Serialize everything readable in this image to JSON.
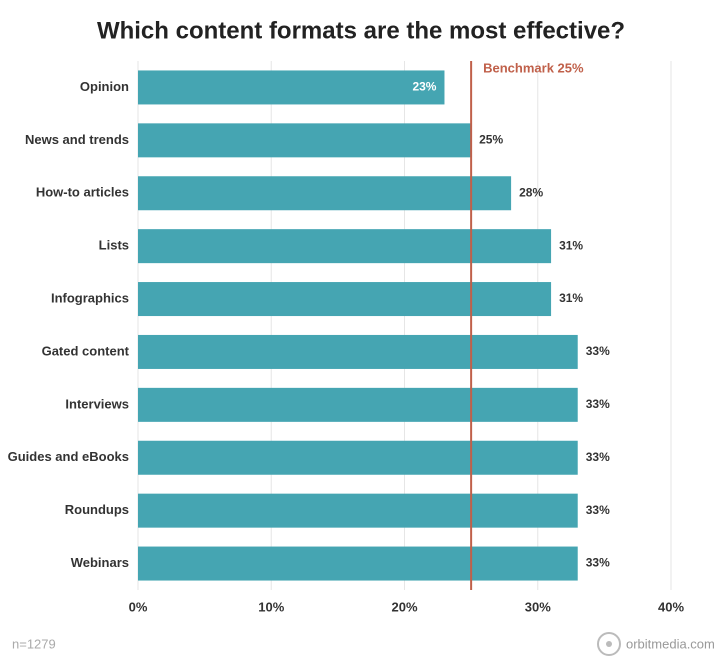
{
  "chart_data": {
    "type": "hbar",
    "title": "Which content formats are the most effective?",
    "categories": [
      "Opinion",
      "News and trends",
      "How-to articles",
      "Lists",
      "Infographics",
      "Gated content",
      "Interviews",
      "Guides and eBooks",
      "Roundups",
      "Webinars"
    ],
    "values": [
      23,
      25,
      28,
      31,
      31,
      33,
      33,
      33,
      33,
      33
    ],
    "value_labels": [
      "23%",
      "25%",
      "28%",
      "31%",
      "31%",
      "33%",
      "33%",
      "33%",
      "33%",
      "33%"
    ],
    "color": "#45a5b2",
    "xlim": [
      0,
      40
    ],
    "xticks": [
      {
        "value": 0,
        "label": "0%"
      },
      {
        "value": 10,
        "label": "10%"
      },
      {
        "value": 20,
        "label": "20%"
      },
      {
        "value": 30,
        "label": "30%"
      },
      {
        "value": 40,
        "label": "40%"
      }
    ],
    "grid": true,
    "benchmark": {
      "value": 25,
      "label": "Benchmark 25%",
      "color": "#c0604a"
    },
    "note": "n=1279",
    "source": "orbitmedia.com"
  }
}
